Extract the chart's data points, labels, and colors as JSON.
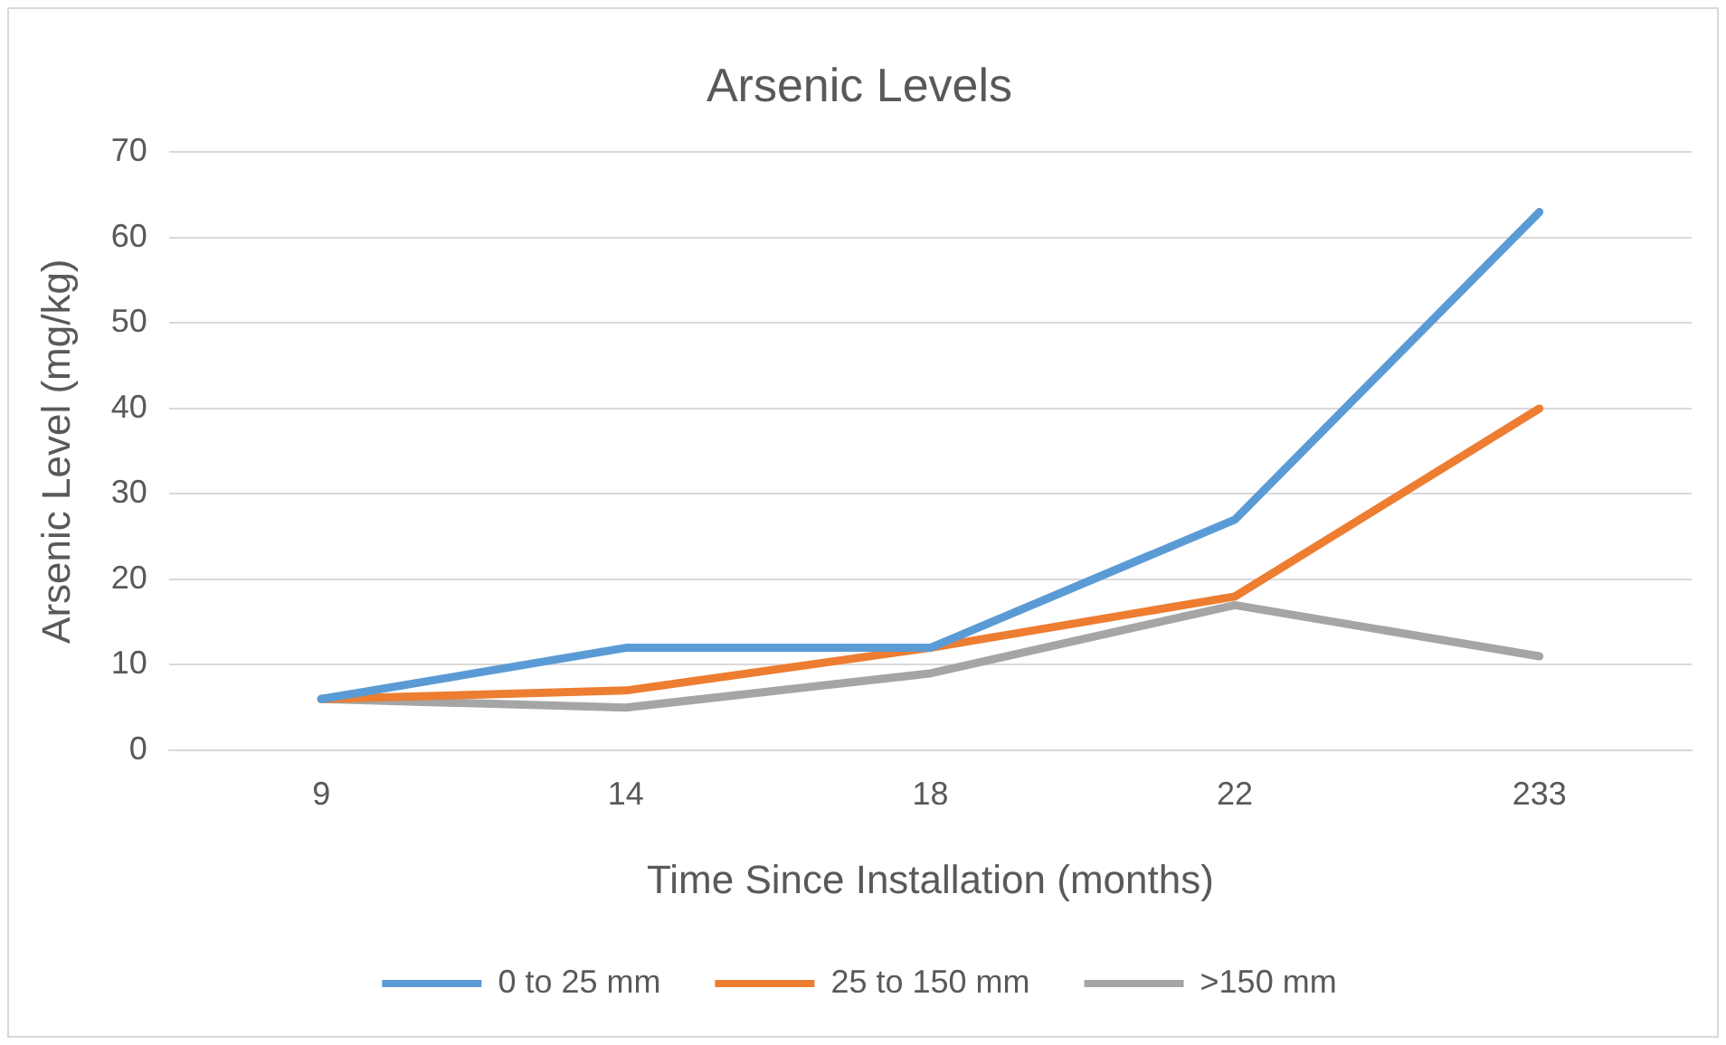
{
  "chart_data": {
    "type": "line",
    "title": "Arsenic Levels",
    "xlabel": "Time Since Installation (months)",
    "ylabel": "Arsenic Level (mg/kg)",
    "categories": [
      "9",
      "14",
      "18",
      "22",
      "233"
    ],
    "series": [
      {
        "name": "0 to 25 mm",
        "color": "#5b9bd5",
        "values": [
          6,
          12,
          12,
          27,
          63
        ]
      },
      {
        "name": "25 to 150 mm",
        "color": "#ed7d31",
        "values": [
          6,
          7,
          12,
          18,
          40
        ]
      },
      {
        "name": ">150 mm",
        "color": "#a5a5a5",
        "values": [
          6,
          5,
          9,
          17,
          11
        ]
      }
    ],
    "ylim": [
      0,
      70
    ],
    "yticks": [
      0,
      10,
      20,
      30,
      40,
      50,
      60,
      70
    ],
    "grid": "y",
    "legend": "bottom",
    "marker": "none",
    "line_style": "solid"
  }
}
